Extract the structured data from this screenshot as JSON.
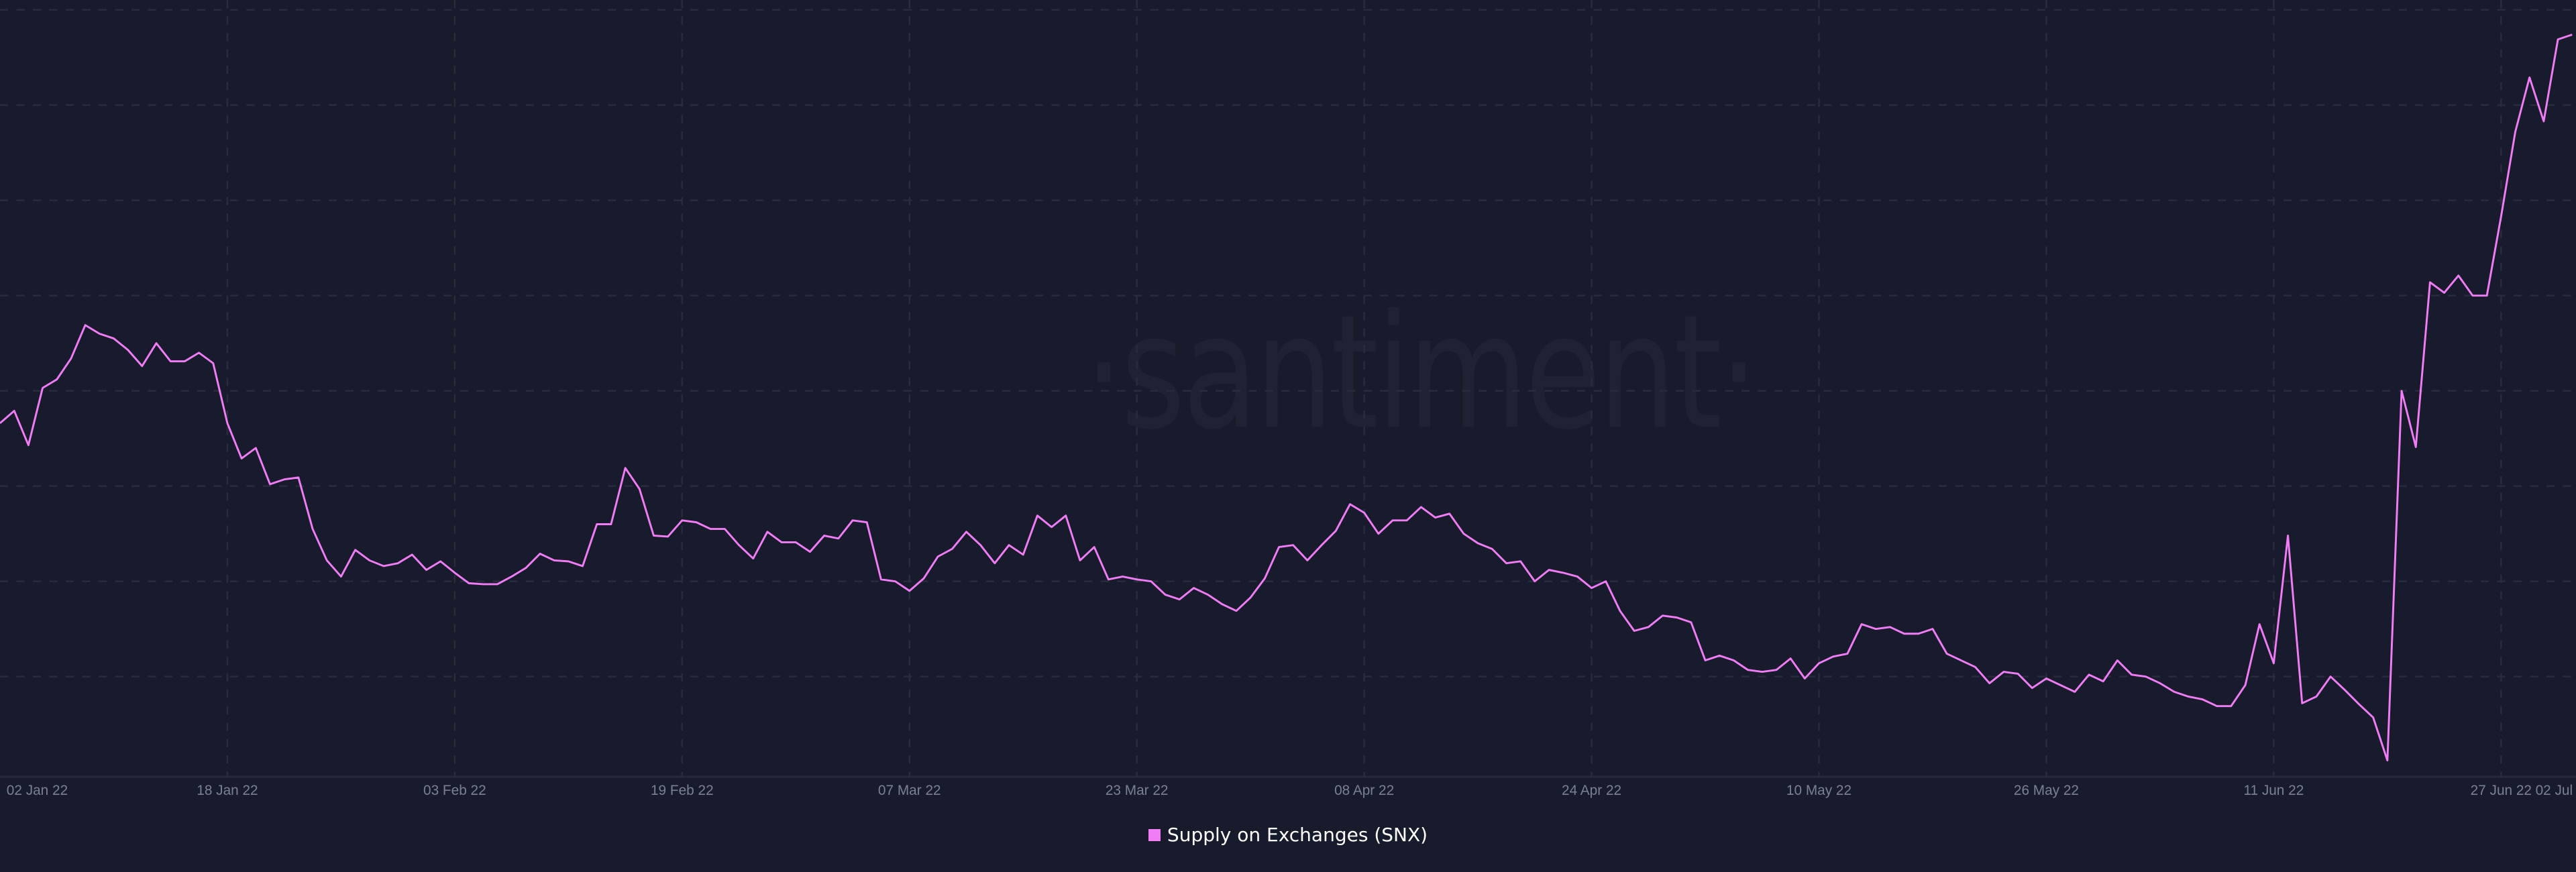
{
  "watermark": "·santiment·",
  "colors": {
    "background": "#181b2b",
    "line": "#f07cf6",
    "grid": "#282c3d",
    "tick_text": "#7a8194"
  },
  "chart_data": {
    "type": "line",
    "title": "",
    "xlabel": "",
    "ylabel": "",
    "y_axis_labels_shown": false,
    "grid": true,
    "legend_position": "bottom-center",
    "x_start": "2022-01-02",
    "x_end": "2022-07-01",
    "x_step": "1 day",
    "x_ticks": [
      {
        "label": "02 Jan 22",
        "day": 0
      },
      {
        "label": "18 Jan 22",
        "day": 16
      },
      {
        "label": "03 Feb 22",
        "day": 32
      },
      {
        "label": "19 Feb 22",
        "day": 48
      },
      {
        "label": "07 Mar 22",
        "day": 64
      },
      {
        "label": "23 Mar 22",
        "day": 80
      },
      {
        "label": "08 Apr 22",
        "day": 96
      },
      {
        "label": "24 Apr 22",
        "day": 112
      },
      {
        "label": "10 May 22",
        "day": 128
      },
      {
        "label": "26 May 22",
        "day": 144
      },
      {
        "label": "11 Jun 22",
        "day": 160
      },
      {
        "label": "27 Jun 22",
        "day": 176
      },
      {
        "label": "02 Jul",
        "day": 181
      }
    ],
    "ylim": [
      0,
      8
    ],
    "series": [
      {
        "name": "Supply on Exchanges (SNX)",
        "color": "#f07cf6",
        "values": [
          3.66,
          3.79,
          3.43,
          4.03,
          4.12,
          4.34,
          4.69,
          4.6,
          4.55,
          4.43,
          4.26,
          4.5,
          4.31,
          4.31,
          4.4,
          4.29,
          3.66,
          3.29,
          3.4,
          3.02,
          3.07,
          3.09,
          2.55,
          2.22,
          2.05,
          2.33,
          2.22,
          2.16,
          2.19,
          2.28,
          2.12,
          2.21,
          2.09,
          1.98,
          1.97,
          1.97,
          2.05,
          2.14,
          2.29,
          2.22,
          2.21,
          2.16,
          2.6,
          2.6,
          3.19,
          2.97,
          2.48,
          2.47,
          2.64,
          2.62,
          2.55,
          2.55,
          2.38,
          2.24,
          2.52,
          2.41,
          2.41,
          2.31,
          2.48,
          2.45,
          2.64,
          2.62,
          2.02,
          2.0,
          1.9,
          2.03,
          2.26,
          2.34,
          2.52,
          2.38,
          2.19,
          2.38,
          2.28,
          2.69,
          2.57,
          2.69,
          2.22,
          2.36,
          2.02,
          2.05,
          2.02,
          2.0,
          1.86,
          1.81,
          1.93,
          1.86,
          1.76,
          1.69,
          1.83,
          2.03,
          2.36,
          2.38,
          2.22,
          2.38,
          2.53,
          2.81,
          2.72,
          2.5,
          2.64,
          2.64,
          2.78,
          2.67,
          2.71,
          2.5,
          2.4,
          2.34,
          2.19,
          2.21,
          2.0,
          2.12,
          2.09,
          2.05,
          1.93,
          2.0,
          1.69,
          1.48,
          1.52,
          1.64,
          1.62,
          1.57,
          1.17,
          1.22,
          1.17,
          1.07,
          1.05,
          1.07,
          1.19,
          0.98,
          1.14,
          1.21,
          1.24,
          1.55,
          1.5,
          1.52,
          1.45,
          1.45,
          1.5,
          1.24,
          1.17,
          1.1,
          0.93,
          1.05,
          1.03,
          0.88,
          0.98,
          0.91,
          0.84,
          1.02,
          0.95,
          1.17,
          1.02,
          1.0,
          0.93,
          0.84,
          0.79,
          0.76,
          0.69,
          0.69,
          0.91,
          1.55,
          1.14,
          2.48,
          0.72,
          0.79,
          1.0,
          0.86,
          0.71,
          0.57,
          0.12,
          4.0,
          3.41,
          5.14,
          5.03,
          5.21,
          5.0,
          5.0,
          5.83,
          6.72,
          7.29,
          6.83,
          7.69,
          7.74
        ]
      }
    ]
  }
}
